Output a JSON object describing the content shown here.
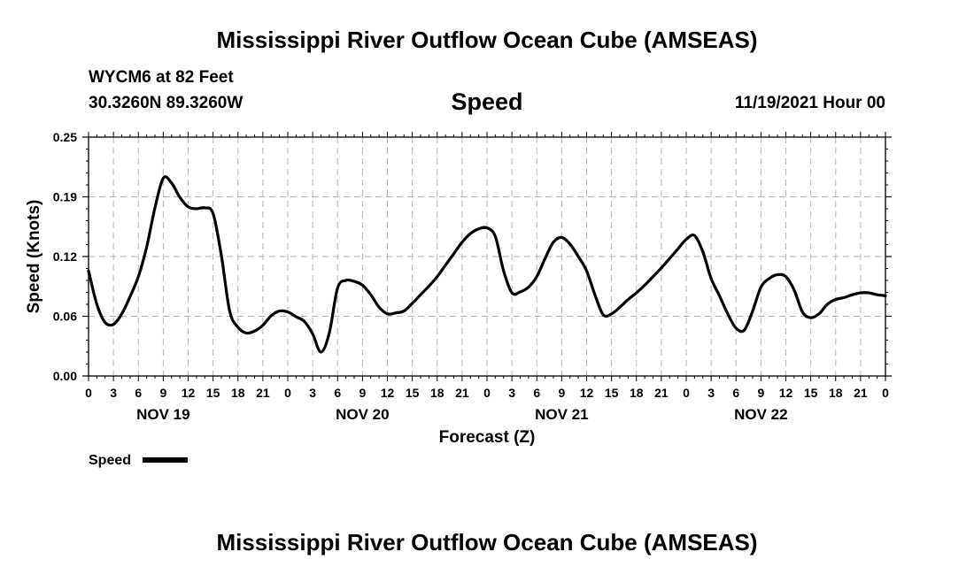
{
  "header": {
    "title": "Mississippi River Outflow Ocean Cube (AMSEAS)",
    "station": "WYCM6 at 82 Feet",
    "coords": "30.3260N  89.3260W",
    "variable": "Speed",
    "datetime": "11/19/2021 Hour 00"
  },
  "footer": {
    "title": "Mississippi River Outflow Ocean Cube (AMSEAS)"
  },
  "chart_data": {
    "type": "line",
    "title": "Speed",
    "xlabel": "Forecast (Z)",
    "ylabel": "Speed (Knots)",
    "ylim": [
      0,
      0.25
    ],
    "xlim": [
      0,
      96
    ],
    "grid": true,
    "legend_position": "bottom-left",
    "y_ticks": [
      {
        "value": 0.0,
        "label": "0.00"
      },
      {
        "value": 0.0625,
        "label": "0.06"
      },
      {
        "value": 0.125,
        "label": "0.12"
      },
      {
        "value": 0.1875,
        "label": "0.19"
      },
      {
        "value": 0.25,
        "label": "0.25"
      }
    ],
    "x_tick_labels": [
      "0",
      "3",
      "6",
      "9",
      "12",
      "15",
      "18",
      "21",
      "0",
      "3",
      "6",
      "9",
      "12",
      "15",
      "18",
      "21",
      "0",
      "3",
      "6",
      "9",
      "12",
      "15",
      "18",
      "21",
      "0",
      "3",
      "6",
      "9",
      "12",
      "15",
      "18",
      "21",
      "0"
    ],
    "day_labels": [
      {
        "hour": 9,
        "label": "NOV 19"
      },
      {
        "hour": 33,
        "label": "NOV 20"
      },
      {
        "hour": 57,
        "label": "NOV 21"
      },
      {
        "hour": 81,
        "label": "NOV 22"
      }
    ],
    "series": [
      {
        "name": "Speed",
        "x": [
          0,
          1,
          2,
          3,
          4,
          5,
          6,
          7,
          8,
          9,
          10,
          11,
          12,
          13,
          14,
          15,
          16,
          17,
          18,
          19,
          20,
          21,
          22,
          23,
          24,
          25,
          26,
          27,
          28,
          29,
          30,
          31,
          32,
          33,
          34,
          35,
          36,
          37,
          38,
          39,
          40,
          41,
          42,
          43,
          44,
          45,
          46,
          47,
          48,
          49,
          50,
          51,
          52,
          53,
          54,
          55,
          56,
          57,
          58,
          59,
          60,
          61,
          62,
          63,
          64,
          65,
          66,
          67,
          68,
          69,
          70,
          71,
          72,
          73,
          74,
          75,
          76,
          77,
          78,
          79,
          80,
          81,
          82,
          83,
          84,
          85,
          86,
          87,
          88,
          89,
          90,
          91,
          92,
          93,
          94,
          95,
          96
        ],
        "values": [
          0.11,
          0.075,
          0.056,
          0.054,
          0.065,
          0.083,
          0.104,
          0.135,
          0.176,
          0.207,
          0.202,
          0.187,
          0.177,
          0.175,
          0.176,
          0.17,
          0.126,
          0.068,
          0.051,
          0.045,
          0.047,
          0.053,
          0.063,
          0.068,
          0.067,
          0.062,
          0.057,
          0.044,
          0.025,
          0.045,
          0.092,
          0.1,
          0.099,
          0.095,
          0.085,
          0.072,
          0.065,
          0.066,
          0.068,
          0.076,
          0.085,
          0.094,
          0.104,
          0.116,
          0.128,
          0.14,
          0.149,
          0.154,
          0.155,
          0.146,
          0.11,
          0.087,
          0.088,
          0.093,
          0.104,
          0.123,
          0.14,
          0.145,
          0.138,
          0.125,
          0.11,
          0.085,
          0.064,
          0.065,
          0.072,
          0.08,
          0.087,
          0.095,
          0.104,
          0.113,
          0.123,
          0.133,
          0.143,
          0.147,
          0.13,
          0.102,
          0.084,
          0.065,
          0.05,
          0.048,
          0.068,
          0.093,
          0.102,
          0.106,
          0.104,
          0.09,
          0.067,
          0.061,
          0.065,
          0.075,
          0.08,
          0.082,
          0.085,
          0.087,
          0.087,
          0.085,
          0.084
        ]
      }
    ]
  }
}
